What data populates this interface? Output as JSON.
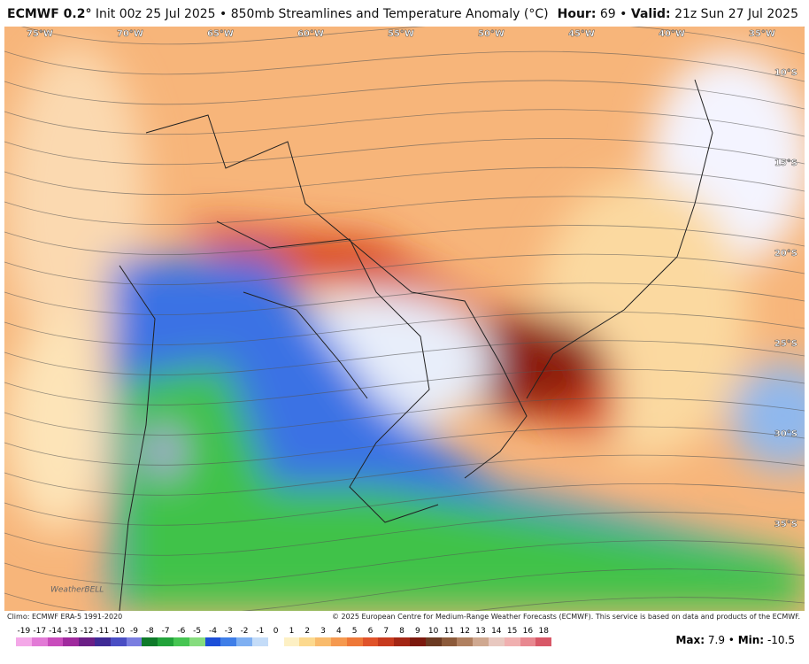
{
  "header": {
    "model": "ECMWF 0.2°",
    "title": "Init 00z 25 Jul 2025 • 850mb Streamlines and Temperature Anomaly (°C)",
    "hour_label": "Hour:",
    "hour": "69",
    "valid_label": "Valid:",
    "valid": "21z Sun 27 Jul 2025"
  },
  "map": {
    "lon_labels": [
      "75°W",
      "70°W",
      "65°W",
      "60°W",
      "55°W",
      "50°W",
      "45°W",
      "40°W",
      "35°W"
    ],
    "lat_labels": [
      "10°S",
      "15°S",
      "20°S",
      "25°S",
      "30°S",
      "35°S"
    ],
    "logo": "WeatherBELL"
  },
  "footer": {
    "climo": "Climo: ECMWF ERA-5 1991-2020",
    "copyright": "© 2025 European Centre for Medium-Range Weather Forecasts (ECMWF). This service is based on data and products of the ECMWF."
  },
  "colorbar": {
    "items": [
      {
        "label": "-19",
        "color": "#f4a8e8"
      },
      {
        "label": "-17",
        "color": "#e27ad6"
      },
      {
        "label": "-14",
        "color": "#c94cbc"
      },
      {
        "label": "-13",
        "color": "#a02a9e"
      },
      {
        "label": "-12",
        "color": "#6b1f86"
      },
      {
        "label": "-11",
        "color": "#3f2a95"
      },
      {
        "label": "-10",
        "color": "#4a4ec4"
      },
      {
        "label": "-9",
        "color": "#7a7ee0"
      },
      {
        "label": "-8",
        "color": "#0f7a2a"
      },
      {
        "label": "-7",
        "color": "#22a33a"
      },
      {
        "label": "-6",
        "color": "#46c552"
      },
      {
        "label": "-5",
        "color": "#86dc7e"
      },
      {
        "label": "-4",
        "color": "#1c4fd8"
      },
      {
        "label": "-3",
        "color": "#3f7ee8"
      },
      {
        "label": "-2",
        "color": "#7fb0f2"
      },
      {
        "label": "-1",
        "color": "#c4dcf8"
      },
      {
        "label": "0",
        "color": "#ffffff"
      },
      {
        "label": "1",
        "color": "#fdf0c4"
      },
      {
        "label": "2",
        "color": "#fcd98e"
      },
      {
        "label": "3",
        "color": "#f9bb6c"
      },
      {
        "label": "4",
        "color": "#f5994f"
      },
      {
        "label": "5",
        "color": "#ee7838"
      },
      {
        "label": "6",
        "color": "#e0532a"
      },
      {
        "label": "7",
        "color": "#c73a1e"
      },
      {
        "label": "8",
        "color": "#a32614"
      },
      {
        "label": "9",
        "color": "#7c1a0e"
      },
      {
        "label": "10",
        "color": "#6b3a22"
      },
      {
        "label": "11",
        "color": "#8c5a3a"
      },
      {
        "label": "12",
        "color": "#b08060"
      },
      {
        "label": "13",
        "color": "#cfa890"
      },
      {
        "label": "14",
        "color": "#e8c8c0"
      },
      {
        "label": "15",
        "color": "#f0b0b0"
      },
      {
        "label": "16",
        "color": "#e88890"
      },
      {
        "label": "18",
        "color": "#d85868"
      }
    ]
  },
  "stats": {
    "max_label": "Max:",
    "max": "7.9",
    "min_label": "Min:",
    "min": "-10.5"
  }
}
